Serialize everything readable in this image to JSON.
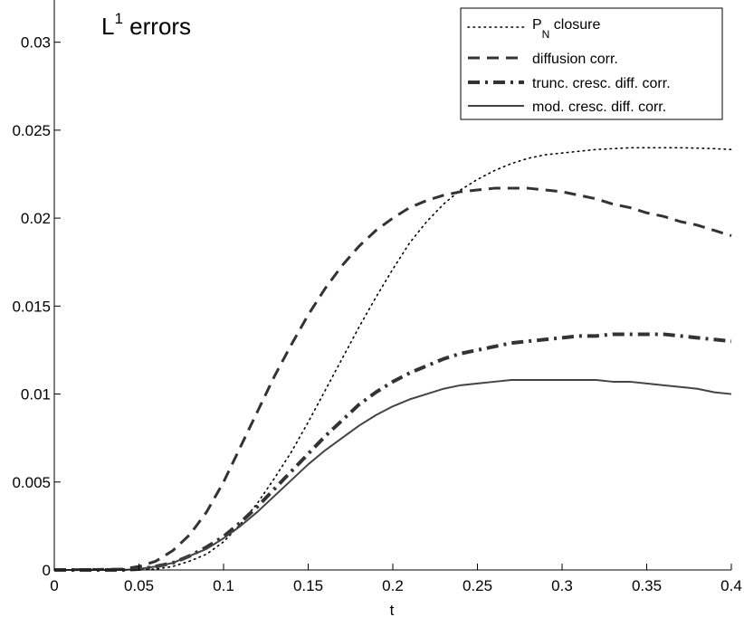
{
  "chart_data": {
    "type": "line",
    "title_main": "L",
    "title_sup": "1",
    "title_rest": " errors",
    "xlabel": "t",
    "ylabel": "",
    "xlim": [
      0,
      0.4
    ],
    "ylim": [
      0,
      0.0324
    ],
    "xticks": [
      0,
      0.05,
      0.1,
      0.15,
      0.2,
      0.25,
      0.3,
      0.35,
      0.4
    ],
    "xtick_labels": [
      "0",
      "0.05",
      "0.1",
      "0.15",
      "0.2",
      "0.25",
      "0.3",
      "0.35",
      "0.4"
    ],
    "yticks": [
      0,
      0.005,
      0.01,
      0.015,
      0.02,
      0.025,
      0.03
    ],
    "ytick_labels": [
      "0",
      "0.005",
      "0.01",
      "0.015",
      "0.02",
      "0.025",
      "0.03"
    ],
    "grid": false,
    "legend_position": "top-right",
    "series": [
      {
        "name": "P",
        "name_sub": "N",
        "name_rest": " closure",
        "style": "dotted",
        "color": "#000000",
        "x": [
          0,
          0.04,
          0.06,
          0.07,
          0.08,
          0.09,
          0.1,
          0.11,
          0.12,
          0.13,
          0.14,
          0.15,
          0.16,
          0.17,
          0.18,
          0.19,
          0.2,
          0.21,
          0.22,
          0.23,
          0.24,
          0.25,
          0.26,
          0.27,
          0.28,
          0.29,
          0.3,
          0.31,
          0.32,
          0.33,
          0.34,
          0.35,
          0.36,
          0.37,
          0.38,
          0.39,
          0.4
        ],
        "y": [
          0,
          0,
          5e-05,
          0.0002,
          0.0005,
          0.0009,
          0.0016,
          0.0026,
          0.0038,
          0.0052,
          0.0067,
          0.0084,
          0.0102,
          0.012,
          0.0138,
          0.0155,
          0.0171,
          0.0186,
          0.0198,
          0.0208,
          0.0216,
          0.0222,
          0.0227,
          0.0231,
          0.0234,
          0.0236,
          0.0237,
          0.0238,
          0.0239,
          0.02395,
          0.024,
          0.024,
          0.024,
          0.024,
          0.02398,
          0.02395,
          0.0239
        ]
      },
      {
        "name": "diffusion corr.",
        "style": "dashed",
        "color": "#333333",
        "x": [
          0,
          0.04,
          0.05,
          0.06,
          0.07,
          0.08,
          0.09,
          0.1,
          0.11,
          0.12,
          0.13,
          0.14,
          0.15,
          0.16,
          0.17,
          0.18,
          0.19,
          0.2,
          0.21,
          0.22,
          0.23,
          0.24,
          0.25,
          0.26,
          0.27,
          0.28,
          0.29,
          0.3,
          0.31,
          0.32,
          0.33,
          0.34,
          0.35,
          0.36,
          0.37,
          0.38,
          0.39,
          0.4
        ],
        "y": [
          0,
          5e-05,
          0.0002,
          0.0005,
          0.0011,
          0.002,
          0.0033,
          0.005,
          0.007,
          0.009,
          0.011,
          0.0128,
          0.0145,
          0.016,
          0.0173,
          0.0184,
          0.0193,
          0.02,
          0.0206,
          0.021,
          0.0213,
          0.0215,
          0.0216,
          0.0217,
          0.0217,
          0.0217,
          0.0216,
          0.0215,
          0.0213,
          0.0211,
          0.0208,
          0.0206,
          0.0203,
          0.0201,
          0.0198,
          0.0196,
          0.0193,
          0.019
        ]
      },
      {
        "name": "trunc. cresc. diff. corr.",
        "style": "dashdot",
        "color": "#333333",
        "x": [
          0,
          0.04,
          0.05,
          0.06,
          0.07,
          0.08,
          0.09,
          0.1,
          0.11,
          0.12,
          0.13,
          0.14,
          0.15,
          0.16,
          0.17,
          0.18,
          0.19,
          0.2,
          0.21,
          0.22,
          0.23,
          0.24,
          0.25,
          0.26,
          0.27,
          0.28,
          0.29,
          0.3,
          0.31,
          0.32,
          0.33,
          0.34,
          0.35,
          0.36,
          0.37,
          0.38,
          0.39,
          0.4
        ],
        "y": [
          0,
          0,
          5e-05,
          0.0002,
          0.0004,
          0.0008,
          0.0013,
          0.0019,
          0.0027,
          0.0036,
          0.0046,
          0.0056,
          0.0066,
          0.0076,
          0.0085,
          0.0094,
          0.0101,
          0.0107,
          0.0112,
          0.0116,
          0.012,
          0.0123,
          0.0125,
          0.0127,
          0.0129,
          0.013,
          0.0131,
          0.0132,
          0.0133,
          0.0133,
          0.0134,
          0.0134,
          0.0134,
          0.0134,
          0.0133,
          0.0132,
          0.0131,
          0.013
        ]
      },
      {
        "name": "mod. cresc. diff. corr.",
        "style": "solid",
        "color": "#444444",
        "x": [
          0,
          0.04,
          0.05,
          0.06,
          0.07,
          0.08,
          0.09,
          0.1,
          0.11,
          0.12,
          0.13,
          0.14,
          0.15,
          0.16,
          0.17,
          0.18,
          0.19,
          0.2,
          0.21,
          0.22,
          0.23,
          0.24,
          0.25,
          0.26,
          0.27,
          0.28,
          0.29,
          0.3,
          0.31,
          0.32,
          0.33,
          0.34,
          0.35,
          0.36,
          0.37,
          0.38,
          0.39,
          0.4
        ],
        "y": [
          0,
          0,
          5e-05,
          0.0002,
          0.0004,
          0.0008,
          0.0012,
          0.0018,
          0.0025,
          0.0033,
          0.0042,
          0.0051,
          0.006,
          0.0068,
          0.0075,
          0.0082,
          0.0088,
          0.0093,
          0.0097,
          0.01,
          0.0103,
          0.0105,
          0.0106,
          0.0107,
          0.0108,
          0.0108,
          0.0108,
          0.0108,
          0.0108,
          0.0108,
          0.0107,
          0.0107,
          0.0106,
          0.0105,
          0.0104,
          0.0103,
          0.0101,
          0.01
        ]
      }
    ]
  }
}
